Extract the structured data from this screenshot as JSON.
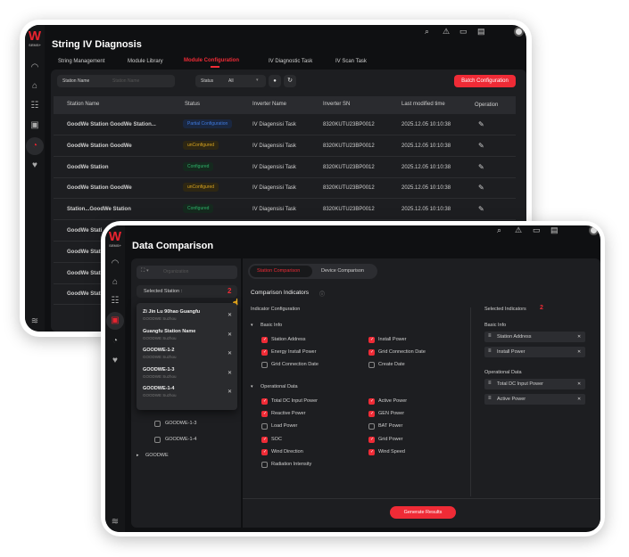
{
  "back": {
    "logo": "W",
    "logo_sub": "SEMS+",
    "title": "String IV Diagnosis",
    "tabs": [
      {
        "label": "String Management"
      },
      {
        "label": "Module Library"
      },
      {
        "label": "Module Configuration",
        "active": true
      },
      {
        "label": "IV Diagnostic Task"
      },
      {
        "label": "IV Scan Task"
      }
    ],
    "filter": {
      "field_label": "Station Name",
      "field_placeholder": "Station Name",
      "status_label": "Status",
      "status_value": "All"
    },
    "batch_button": "Batch Configuration",
    "columns": [
      "Station Name",
      "Status",
      "Inverter Name",
      "Inverter SN",
      "Last modified time",
      "Operation"
    ],
    "rows": [
      {
        "station": "GoodWe Station GoodWe Station...",
        "status": "Partial Configuration",
        "status_type": "partial",
        "inverter": "IV Diagensisi Task",
        "sn": "8320KUTU23BP0012",
        "time": "2025.12.05 10:10:38"
      },
      {
        "station": "GoodWe Station GoodWe",
        "status": "unConfigured",
        "status_type": "un",
        "inverter": "IV Diagensisi Task",
        "sn": "8320KUTU23BP0012",
        "time": "2025.12.05 10:10:38"
      },
      {
        "station": "GoodWe Station",
        "status": "Configured",
        "status_type": "ok",
        "inverter": "IV Diagensisi Task",
        "sn": "8320KUTU23BP0012",
        "time": "2025.12.05 10:10:38"
      },
      {
        "station": "GoodWe Station GoodWe",
        "status": "unConfigured",
        "status_type": "un",
        "inverter": "IV Diagensisi Task",
        "sn": "8320KUTU23BP0012",
        "time": "2025.12.05 10:10:38"
      },
      {
        "station": "Station...GoodWe Station",
        "status": "Configured",
        "status_type": "ok",
        "inverter": "IV Diagensisi Task",
        "sn": "8320KUTU23BP0012",
        "time": "2025.12.05 10:10:38"
      },
      {
        "station": "GoodWe Stati"
      },
      {
        "station": "GoodWe Stati"
      },
      {
        "station": "GoodWe Stati"
      },
      {
        "station": "GoodWe Stati"
      }
    ]
  },
  "front": {
    "logo": "W",
    "logo_sub": "SEMS+",
    "title": "Data Comparison",
    "org_placeholder": "Organization",
    "selected_station_label": "Selected Station :",
    "selected_station_count": "2",
    "popup": [
      {
        "name": "Zi Jin Lu 90hao Guangfu",
        "sub": "GOODWE Suzhou"
      },
      {
        "name": "Guangfu Station Name",
        "sub": "GOODWE Suzhou"
      },
      {
        "name": "GOODWE-1-2",
        "sub": "GOODWE Suzhou"
      },
      {
        "name": "GOODWE-1-3",
        "sub": "GOODWE Suzhou"
      },
      {
        "name": "GOODWE-1-4",
        "sub": "GOODWE Suzhou"
      }
    ],
    "tree": [
      "GOODWE-1-3",
      "GOODWE-1-4",
      "GOODWE"
    ],
    "tabs": [
      "Station Comparison",
      "Device Comparison"
    ],
    "section_title": "Comparison Indicators",
    "config_label": "Indicator Configuration",
    "groups": [
      {
        "name": "Basic Info",
        "items": [
          {
            "label": "Station Address",
            "checked": true
          },
          {
            "label": "Install Power",
            "checked": true
          },
          {
            "label": "Energy Install Power",
            "checked": true
          },
          {
            "label": "Grid Connection Date",
            "checked": true
          },
          {
            "label": "Grid Connection Date",
            "checked": false
          },
          {
            "label": "Create Date",
            "checked": false
          }
        ]
      },
      {
        "name": "Operational Data",
        "items": [
          {
            "label": "Total DC Input Power",
            "checked": true
          },
          {
            "label": "Active Power",
            "checked": true
          },
          {
            "label": "Reactive Power",
            "checked": true
          },
          {
            "label": "GEN Power",
            "checked": true
          },
          {
            "label": "Load Power",
            "checked": false
          },
          {
            "label": "BAT Power",
            "checked": false
          },
          {
            "label": "SOC",
            "checked": true
          },
          {
            "label": "Grid Power",
            "checked": true
          },
          {
            "label": "Wind Direction",
            "checked": true
          },
          {
            "label": "Wind Speed",
            "checked": true
          },
          {
            "label": "Radiation Intensity",
            "checked": false
          }
        ]
      }
    ],
    "selected_label": "Selected Indicators",
    "selected_count": "2",
    "selected_groups": [
      {
        "name": "Basic Info",
        "items": [
          "Station Address",
          "Install Power"
        ]
      },
      {
        "name": "Operational Data",
        "items": [
          "Total DC Input Power",
          "Active Power"
        ]
      }
    ],
    "generate_button": "Generate Results"
  },
  "colors": {
    "accent": "#ef2b36",
    "partial": "#3f7be0",
    "unconfigured": "#d9a520",
    "configured": "#2fb36a"
  }
}
